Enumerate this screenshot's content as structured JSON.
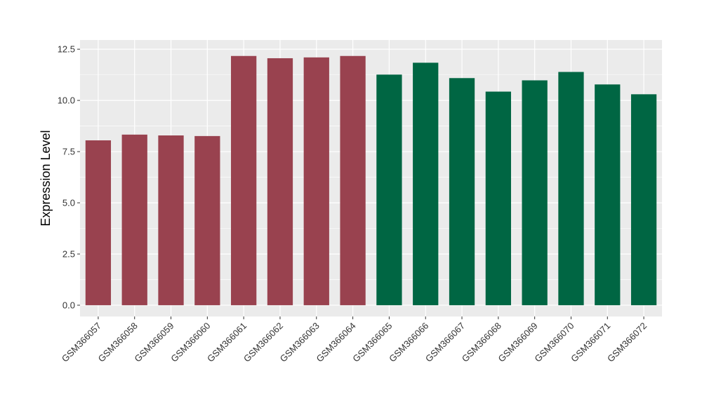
{
  "chart_data": {
    "type": "bar",
    "title": "",
    "xlabel": "",
    "ylabel": "Expression Level",
    "ylim": [
      -0.55,
      12.95
    ],
    "yticks": [
      0.0,
      2.5,
      5.0,
      7.5,
      10.0,
      12.5
    ],
    "ytick_labels": [
      "0.0",
      "2.5",
      "5.0",
      "7.5",
      "10.0",
      "12.5"
    ],
    "grid": true,
    "legend": "none",
    "categories": [
      "GSM366057",
      "GSM366058",
      "GSM366059",
      "GSM366060",
      "GSM366061",
      "GSM366062",
      "GSM366063",
      "GSM366064",
      "GSM366065",
      "GSM366066",
      "GSM366067",
      "GSM366068",
      "GSM366069",
      "GSM366070",
      "GSM366071",
      "GSM366072"
    ],
    "values": [
      8.05,
      8.33,
      8.29,
      8.26,
      12.17,
      12.06,
      12.1,
      12.17,
      11.26,
      11.84,
      11.09,
      10.43,
      10.98,
      11.39,
      10.78,
      10.3
    ],
    "bar_colors": [
      "#99424f",
      "#99424f",
      "#99424f",
      "#99424f",
      "#99424f",
      "#99424f",
      "#99424f",
      "#99424f",
      "#006643",
      "#006643",
      "#006643",
      "#006643",
      "#006643",
      "#006643",
      "#006643",
      "#006643"
    ],
    "panel_background": "#ebebeb",
    "grid_color": "#ffffff"
  }
}
